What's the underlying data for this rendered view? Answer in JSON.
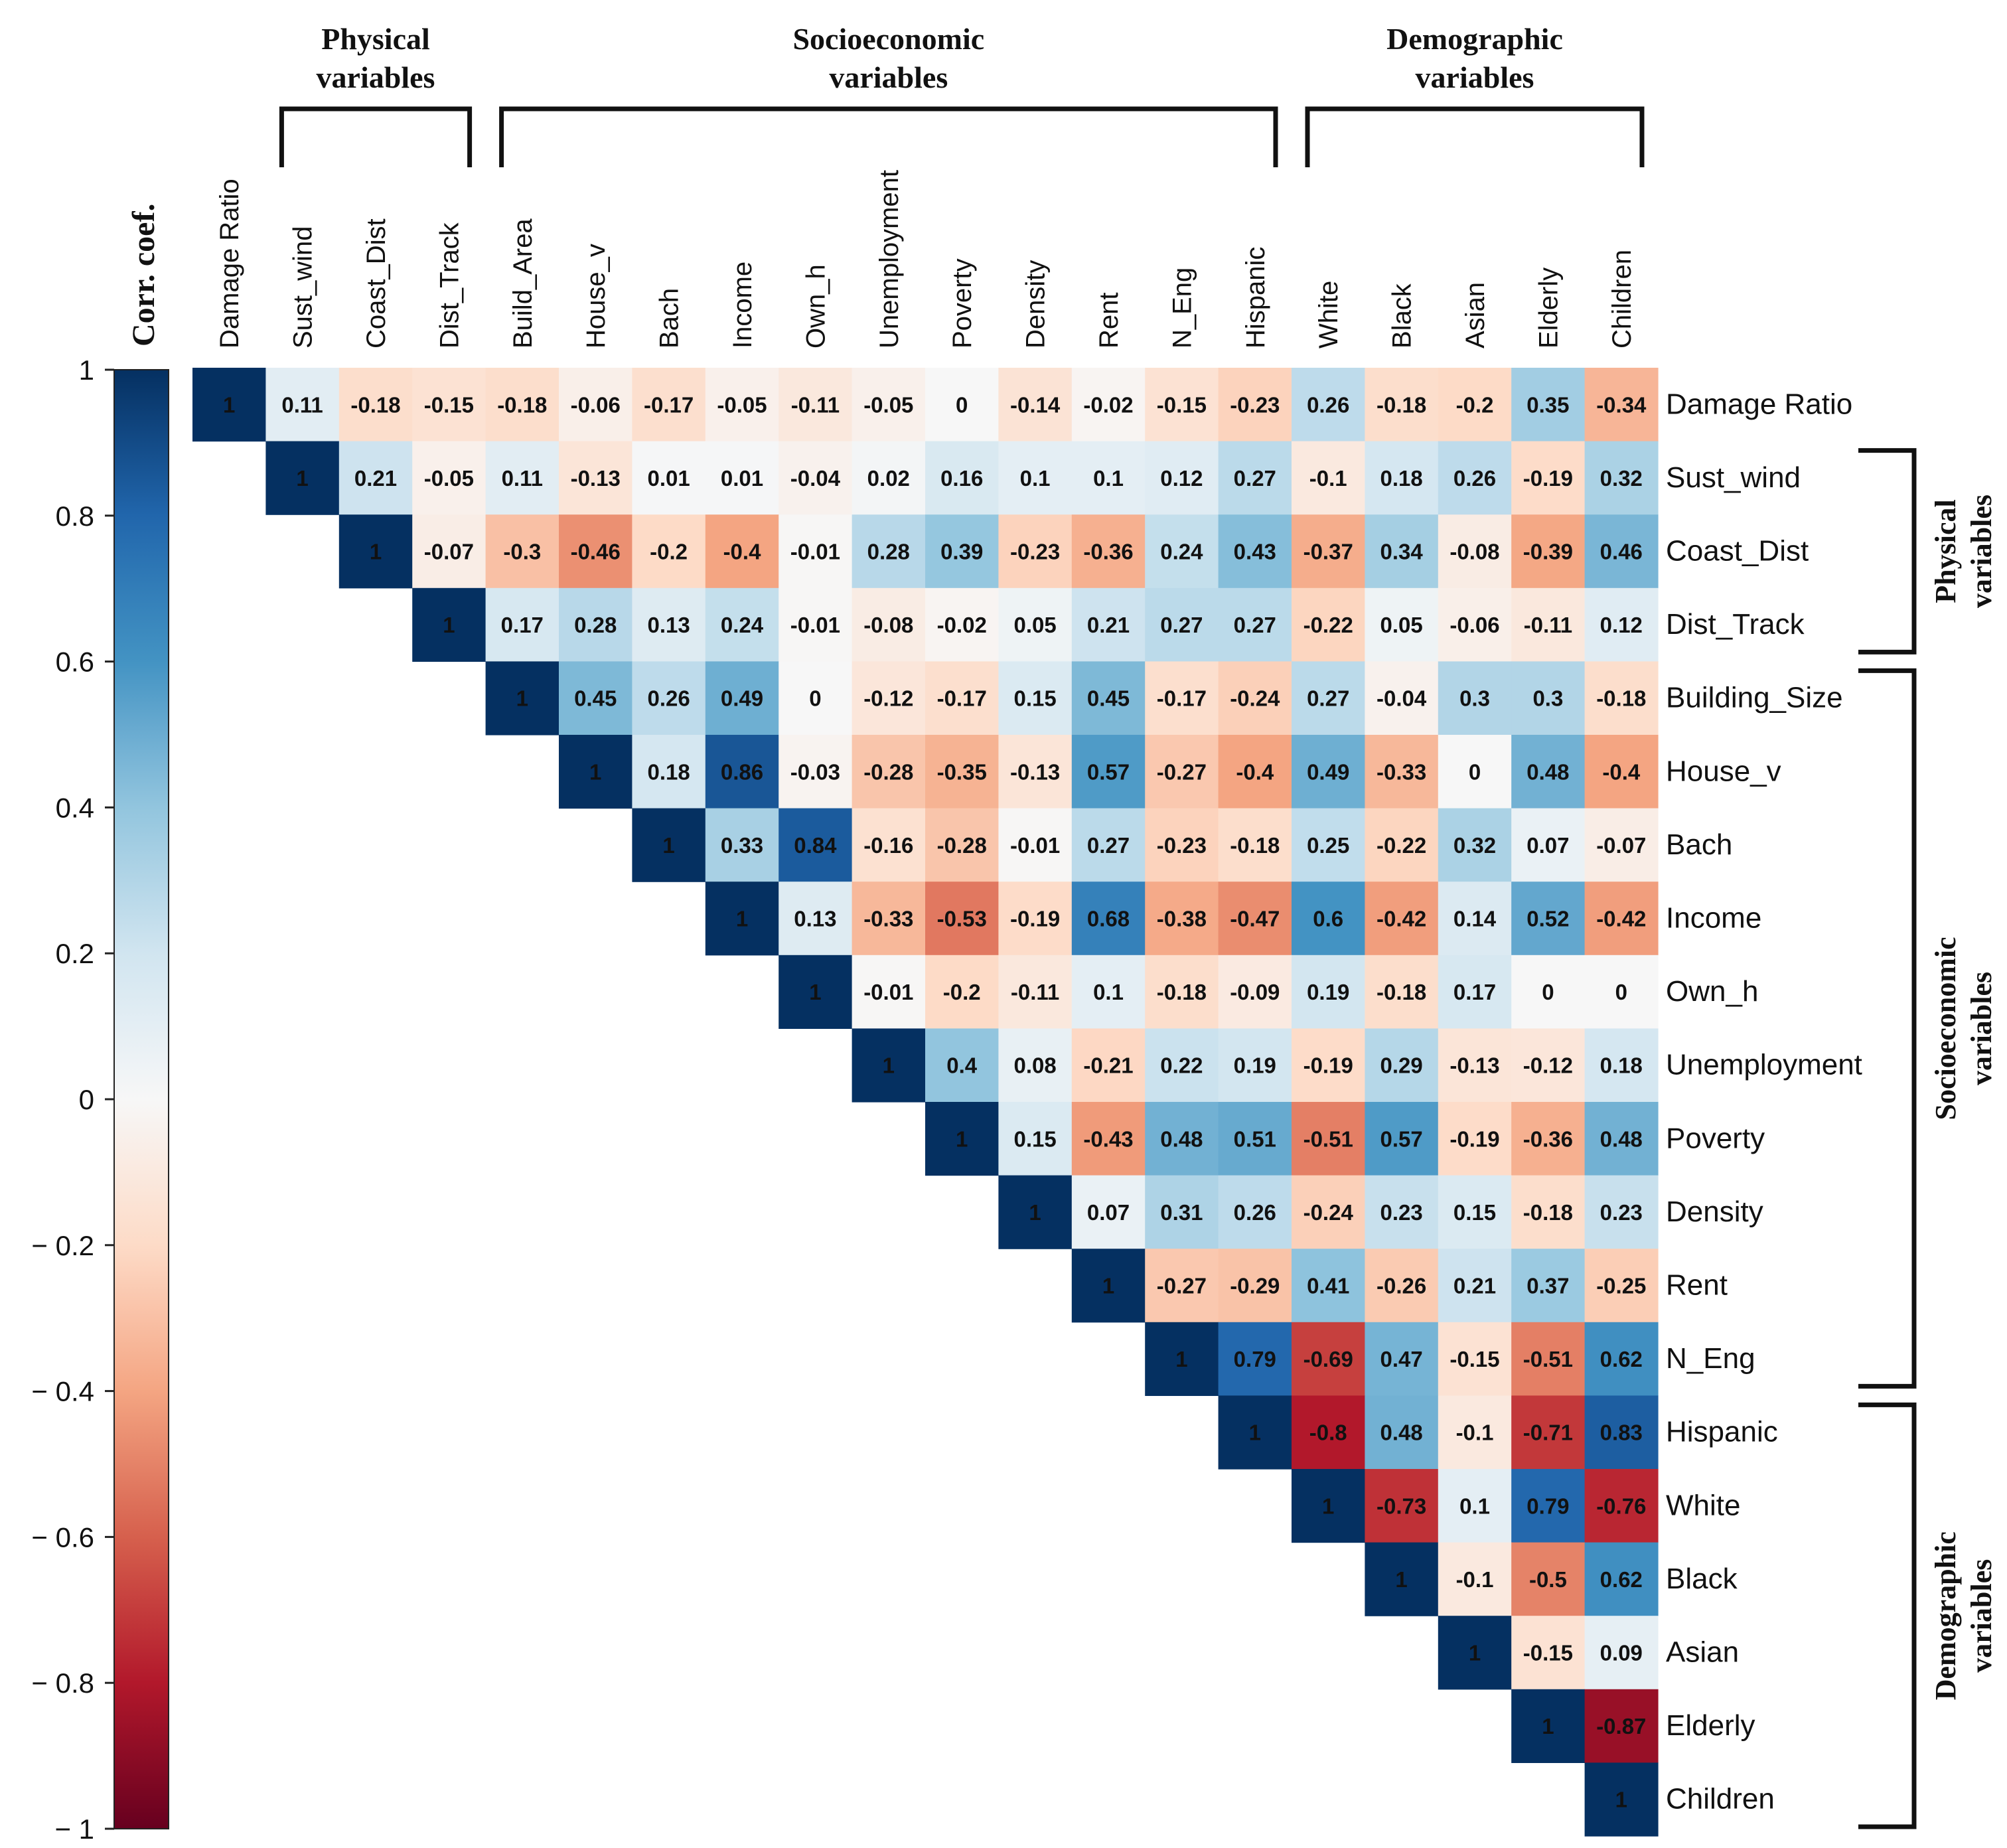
{
  "chart_data": {
    "type": "heatmap",
    "colorbar": {
      "title": "Corr. coef.",
      "ticks": [
        "1",
        "0.8",
        "0.6",
        "0.4",
        "0.2",
        "0",
        "− 0.2",
        "− 0.4",
        "− 0.6",
        "− 0.8",
        "− 1"
      ],
      "range": [
        -1,
        1
      ],
      "colormap": "RdBu"
    },
    "columns": [
      "Damage Ratio",
      "Sust_wind",
      "Coast_Dist",
      "Dist_Track",
      "Build_Area",
      "House_v",
      "Bach",
      "Income",
      "Own_h",
      "Unemployment",
      "Poverty",
      "Density",
      "Rent",
      "N_Eng",
      "Hispanic",
      "White",
      "Black",
      "Asian",
      "Elderly",
      "Children"
    ],
    "rows": [
      "Damage Ratio",
      "Sust_wind",
      "Coast_Dist",
      "Dist_Track",
      "Building_Size",
      "House_v",
      "Bach",
      "Income",
      "Own_h",
      "Unemployment",
      "Poverty",
      "Density",
      "Rent",
      "N_Eng",
      "Hispanic",
      "White",
      "Black",
      "Asian",
      "Elderly",
      "Children"
    ],
    "values": [
      [
        1,
        0.11,
        -0.18,
        -0.15,
        -0.18,
        -0.06,
        -0.17,
        -0.05,
        -0.11,
        -0.05,
        0,
        -0.14,
        -0.02,
        -0.15,
        -0.23,
        0.26,
        -0.18,
        -0.2,
        0.35,
        -0.34
      ],
      [
        1,
        0.21,
        -0.05,
        0.11,
        -0.13,
        0.01,
        0.01,
        -0.04,
        0.02,
        0.16,
        0.1,
        0.1,
        0.12,
        0.27,
        -0.1,
        0.18,
        0.26,
        -0.19,
        0.32
      ],
      [
        1,
        -0.07,
        -0.3,
        -0.46,
        -0.2,
        -0.4,
        -0.01,
        0.28,
        0.39,
        -0.23,
        -0.36,
        0.24,
        0.43,
        -0.37,
        0.34,
        -0.08,
        -0.39,
        0.46
      ],
      [
        1,
        0.17,
        0.28,
        0.13,
        0.24,
        -0.01,
        -0.08,
        -0.02,
        0.05,
        0.21,
        0.27,
        0.27,
        -0.22,
        0.05,
        -0.06,
        -0.11,
        0.12
      ],
      [
        1,
        0.45,
        0.26,
        0.49,
        0,
        -0.12,
        -0.17,
        0.15,
        0.45,
        -0.17,
        -0.24,
        0.27,
        -0.04,
        0.3,
        0.3,
        -0.18
      ],
      [
        1,
        0.18,
        0.86,
        -0.03,
        -0.28,
        -0.35,
        -0.13,
        0.57,
        -0.27,
        -0.4,
        0.49,
        -0.33,
        0,
        0.48,
        -0.4
      ],
      [
        1,
        0.33,
        0.84,
        -0.16,
        -0.28,
        -0.01,
        0.27,
        -0.23,
        -0.18,
        0.25,
        -0.22,
        0.32,
        0.07,
        -0.07
      ],
      [
        1,
        0.13,
        -0.33,
        -0.53,
        -0.19,
        0.68,
        -0.38,
        -0.47,
        0.6,
        -0.42,
        0.14,
        0.52,
        -0.42
      ],
      [
        1,
        -0.01,
        -0.2,
        -0.11,
        0.1,
        -0.18,
        -0.09,
        0.19,
        -0.18,
        0.17,
        0,
        0
      ],
      [
        1,
        0.4,
        0.08,
        -0.21,
        0.22,
        0.19,
        -0.19,
        0.29,
        -0.13,
        -0.12,
        0.18
      ],
      [
        1,
        0.15,
        -0.43,
        0.48,
        0.51,
        -0.51,
        0.57,
        -0.19,
        -0.36,
        0.48
      ],
      [
        1,
        0.07,
        0.31,
        0.26,
        -0.24,
        0.23,
        0.15,
        -0.18,
        0.23
      ],
      [
        1,
        -0.27,
        -0.29,
        0.41,
        -0.26,
        0.21,
        0.37,
        -0.25
      ],
      [
        1,
        0.79,
        -0.69,
        0.47,
        -0.15,
        -0.51,
        0.62
      ],
      [
        1,
        -0.8,
        0.48,
        -0.1,
        -0.71,
        0.83
      ],
      [
        1,
        -0.73,
        0.1,
        0.79,
        -0.76
      ],
      [
        1,
        -0.1,
        -0.5,
        0.62
      ],
      [
        1,
        -0.15,
        0.09
      ],
      [
        1,
        -0.87
      ],
      [
        1
      ]
    ],
    "column_groups": [
      {
        "label_lines": [
          "Physical",
          "variables"
        ],
        "from": 1,
        "to": 3
      },
      {
        "label_lines": [
          "Socioeconomic",
          "variables"
        ],
        "from": 4,
        "to": 14
      },
      {
        "label_lines": [
          "Demographic",
          "variables"
        ],
        "from": 15,
        "to": 19
      }
    ],
    "row_groups": [
      {
        "label_lines": [
          "Physical",
          "variables"
        ],
        "from": 1,
        "to": 3
      },
      {
        "label_lines": [
          "Socioeconomic",
          "variables"
        ],
        "from": 4,
        "to": 13
      },
      {
        "label_lines": [
          "Demographic",
          "variables"
        ],
        "from": 14,
        "to": 19
      }
    ]
  }
}
